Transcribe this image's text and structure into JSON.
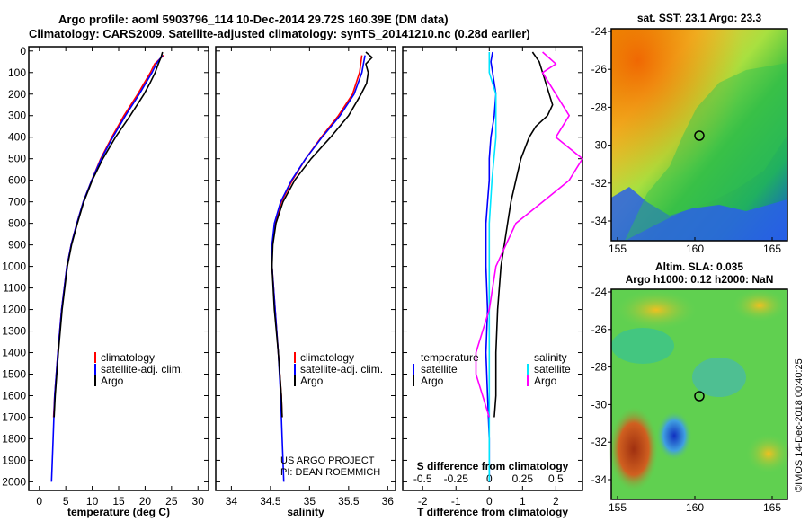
{
  "header": {
    "title_line1": "Argo profile: aoml 5903796_114 10-Dec-2014 29.72S 160.39E (DM data)",
    "title_line2": "Climatology: CARS2009. Satellite-adjusted climatology: synTS_20141210.nc (0.28d earlier)"
  },
  "colors": {
    "climatology": "#ff0000",
    "satellite_adj": "#0000ff",
    "argo": "#000000",
    "sat_salinity": "#00e5ff",
    "argo_salinity_diff": "#ff00ff"
  },
  "depth_axis": {
    "ticks": [
      "0",
      "100",
      "200",
      "300",
      "400",
      "500",
      "600",
      "700",
      "800",
      "900",
      "1000",
      "1100",
      "1200",
      "1300",
      "1400",
      "1500",
      "1600",
      "1700",
      "1800",
      "1900",
      "2000"
    ]
  },
  "legend": {
    "climatology": "climatology",
    "satellite": "satellite-adj. clim.",
    "argo": "Argo"
  },
  "legend_diff": {
    "temperature": "temperature",
    "salinity": "salinity",
    "satellite": "satellite",
    "argo": "Argo"
  },
  "credit": {
    "line1": "US ARGO PROJECT",
    "line2": "PI: DEAN ROEMMICH"
  },
  "maps": {
    "sst_title": "sat. SST: 23.1 Argo: 23.3",
    "sla_title1": "Altim. SLA: 0.035",
    "sla_title2": "Argo h1000: 0.12 h2000: NaN",
    "lat_ticks": [
      "-24",
      "-26",
      "-28",
      "-30",
      "-32",
      "-34"
    ],
    "lon_ticks": [
      "155",
      "160",
      "165"
    ],
    "footer": "©IMOS 14-Dec-2018 00:40:25"
  },
  "chart_data": [
    {
      "type": "line",
      "xlabel": "temperature (deg C)",
      "ylabel": "",
      "xlim": [
        -2,
        32
      ],
      "ylim": [
        2040,
        -20
      ],
      "x_ticks": [
        "0",
        "5",
        "10",
        "15",
        "20",
        "25",
        "30"
      ],
      "series": [
        {
          "name": "climatology",
          "color": "#ff0000",
          "depth": [
            20,
            60,
            100,
            150,
            200,
            300,
            400,
            500,
            600,
            700,
            800,
            900,
            1000,
            1200,
            1400,
            1600,
            1700
          ],
          "values": [
            23.5,
            21.8,
            21.0,
            19.8,
            18.6,
            16.0,
            13.7,
            11.6,
            9.9,
            8.3,
            7.1,
            6.0,
            5.2,
            4.2,
            3.5,
            2.9,
            2.7
          ]
        },
        {
          "name": "satellite-adj. clim.",
          "color": "#0000ff",
          "depth": [
            20,
            60,
            100,
            150,
            200,
            300,
            400,
            500,
            600,
            700,
            800,
            900,
            1000,
            1200,
            1400,
            1600,
            1800,
            2000
          ],
          "values": [
            23.3,
            22.1,
            21.3,
            20.1,
            18.9,
            16.3,
            13.9,
            11.7,
            9.9,
            8.3,
            7.1,
            6.0,
            5.2,
            4.2,
            3.5,
            2.9,
            2.6,
            2.3
          ]
        },
        {
          "name": "Argo",
          "color": "#000000",
          "depth": [
            5,
            30,
            60,
            100,
            150,
            200,
            300,
            400,
            500,
            600,
            700,
            800,
            900,
            1000,
            1200,
            1400,
            1600,
            1700
          ],
          "values": [
            23.3,
            23.0,
            22.5,
            21.9,
            20.9,
            19.8,
            17.2,
            14.4,
            12.0,
            10.0,
            8.4,
            7.2,
            6.1,
            5.3,
            4.3,
            3.6,
            3.0,
            2.8
          ]
        }
      ]
    },
    {
      "type": "line",
      "xlabel": "salinity",
      "ylabel": "",
      "xlim": [
        33.8,
        36.1
      ],
      "ylim": [
        2040,
        -20
      ],
      "x_ticks": [
        "34",
        "34.5",
        "35",
        "35.5",
        "36"
      ],
      "series": [
        {
          "name": "climatology",
          "color": "#ff0000",
          "depth": [
            20,
            100,
            200,
            300,
            400,
            500,
            600,
            700,
            800,
            900,
            1000,
            1200,
            1400,
            1600,
            1700
          ],
          "values": [
            35.67,
            35.64,
            35.55,
            35.37,
            35.15,
            34.95,
            34.78,
            34.64,
            34.56,
            34.52,
            34.52,
            34.56,
            34.6,
            34.64,
            34.65
          ]
        },
        {
          "name": "satellite-adj. clim.",
          "color": "#0000ff",
          "depth": [
            20,
            60,
            100,
            200,
            300,
            400,
            500,
            600,
            700,
            800,
            900,
            1000,
            1200,
            1400,
            1600,
            1800,
            2000
          ],
          "values": [
            35.71,
            35.69,
            35.67,
            35.57,
            35.39,
            35.16,
            34.95,
            34.77,
            34.63,
            34.55,
            34.52,
            34.52,
            34.56,
            34.6,
            34.63,
            34.65,
            34.67
          ]
        },
        {
          "name": "Argo",
          "color": "#000000",
          "depth": [
            5,
            30,
            60,
            100,
            150,
            200,
            300,
            400,
            500,
            600,
            700,
            800,
            900,
            1000,
            1200,
            1400,
            1600,
            1700
          ],
          "values": [
            35.72,
            35.8,
            35.72,
            35.75,
            35.73,
            35.66,
            35.5,
            35.27,
            35.02,
            34.81,
            34.66,
            34.57,
            34.53,
            34.52,
            34.55,
            34.6,
            34.64,
            34.65
          ]
        }
      ]
    },
    {
      "type": "line",
      "xlabel": "T difference from climatology",
      "xlabel_top": "S difference from climatology",
      "ylabel": "",
      "xlim": [
        -2.6,
        2.8
      ],
      "ylim": [
        2040,
        -20
      ],
      "x_ticks": [
        "-2",
        "-1",
        "0",
        "1",
        "2"
      ],
      "x_ticks_s": [
        "-0.5",
        "-0.25",
        "0",
        "0.25",
        "0.5"
      ],
      "series": [
        {
          "name": "temperature satellite",
          "color": "#0000ff",
          "depth": [
            5,
            50,
            100,
            200,
            300,
            400,
            500,
            600,
            700,
            800,
            1000,
            1200,
            1400,
            1600,
            1800,
            2000
          ],
          "values": [
            0.1,
            0.05,
            0.1,
            0.2,
            0.15,
            0.05,
            0.0,
            0.0,
            -0.05,
            -0.1,
            -0.1,
            -0.05,
            -0.1,
            -0.05,
            0.0,
            0.0
          ]
        },
        {
          "name": "salinity satellite",
          "color": "#00e5ff",
          "depth": [
            5,
            100,
            200,
            400,
            600,
            800,
            1000,
            1200,
            1400,
            1600,
            1800,
            2000
          ],
          "values": [
            0.0,
            0.0,
            0.05,
            0.05,
            0.02,
            0.0,
            0.0,
            0.0,
            0.0,
            0.0,
            0.0,
            0.0
          ]
        },
        {
          "name": "temperature Argo",
          "color": "#000000",
          "depth": [
            5,
            50,
            100,
            150,
            200,
            250,
            300,
            350,
            400,
            500,
            600,
            700,
            800,
            900,
            1000,
            1200,
            1400,
            1600,
            1700
          ],
          "values": [
            1.3,
            1.5,
            1.6,
            1.7,
            1.8,
            1.9,
            1.75,
            1.4,
            1.2,
            0.95,
            0.8,
            0.65,
            0.55,
            0.45,
            0.35,
            0.25,
            0.2,
            0.2,
            0.15
          ]
        },
        {
          "name": "salinity Argo",
          "color": "#ff00ff",
          "depth": [
            5,
            60,
            100,
            200,
            300,
            400,
            450,
            500,
            600,
            700,
            800,
            1000,
            1200,
            1400,
            1500,
            1600,
            1700
          ],
          "values": [
            0.4,
            0.5,
            0.4,
            0.5,
            0.6,
            0.5,
            0.6,
            0.7,
            0.6,
            0.4,
            0.2,
            0.05,
            0.0,
            -0.1,
            -0.1,
            -0.05,
            0.0
          ]
        }
      ]
    }
  ]
}
